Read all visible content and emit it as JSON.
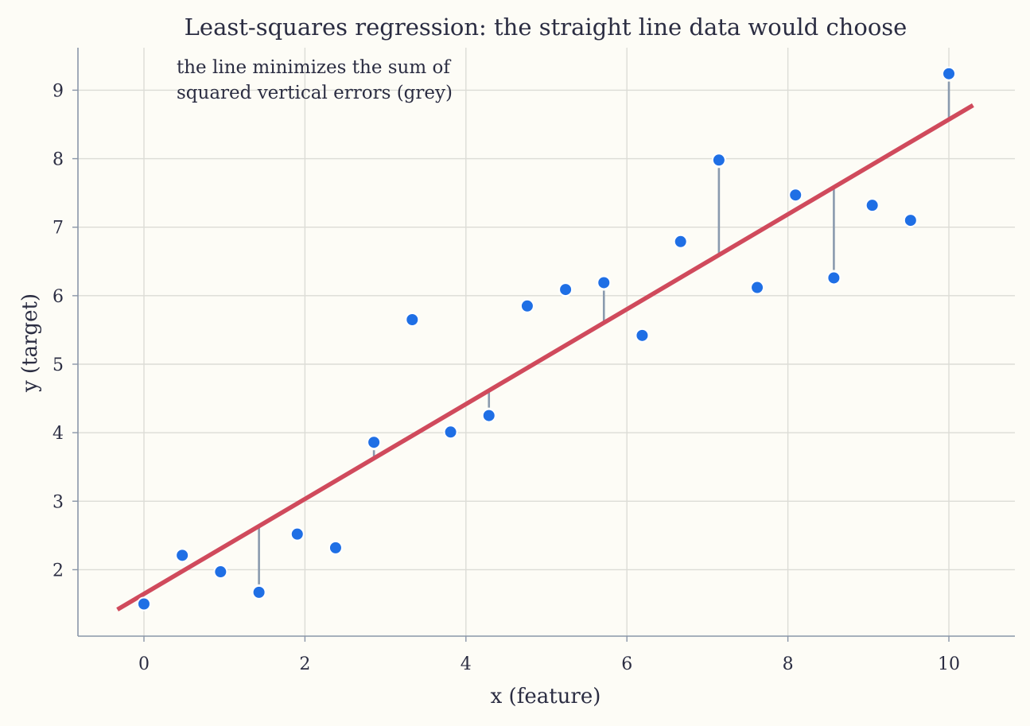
{
  "chart_data": {
    "type": "scatter",
    "title": "Least-squares regression: the straight line data would choose",
    "xlabel": "x (feature)",
    "ylabel": "y (target)",
    "annotation": [
      "the line minimizes the sum of",
      "squared vertical errors (grey)"
    ],
    "xlim": [
      -0.82,
      10.82
    ],
    "ylim": [
      1.03,
      9.62
    ],
    "xticks": [
      0,
      2,
      4,
      6,
      8,
      10
    ],
    "yticks": [
      2,
      3,
      4,
      5,
      6,
      7,
      8,
      9
    ],
    "grid": true,
    "colors": {
      "points": "#1f6fe5",
      "fit_line": "#d04a5c",
      "residuals": "#8a9aae",
      "background": "#fdfcf6"
    },
    "points": {
      "x": [
        0.0,
        0.476,
        0.952,
        1.429,
        1.905,
        2.381,
        2.857,
        3.333,
        3.81,
        4.286,
        4.762,
        5.238,
        5.714,
        6.19,
        6.667,
        7.143,
        7.619,
        8.095,
        8.571,
        9.048,
        9.524,
        10.0
      ],
      "y": [
        1.5,
        2.21,
        1.97,
        1.67,
        2.52,
        2.32,
        3.86,
        5.65,
        4.01,
        4.25,
        5.85,
        6.09,
        6.19,
        5.42,
        6.79,
        7.98,
        6.12,
        7.47,
        6.26,
        7.32,
        7.1,
        9.24
      ]
    },
    "fit_line": {
      "slope": 0.6926,
      "intercept": 1.6467,
      "x_range": [
        -0.33,
        10.3
      ]
    },
    "residuals_shown_at": [
      1.429,
      2.857,
      4.286,
      5.714,
      7.143,
      8.571,
      10.0
    ]
  }
}
